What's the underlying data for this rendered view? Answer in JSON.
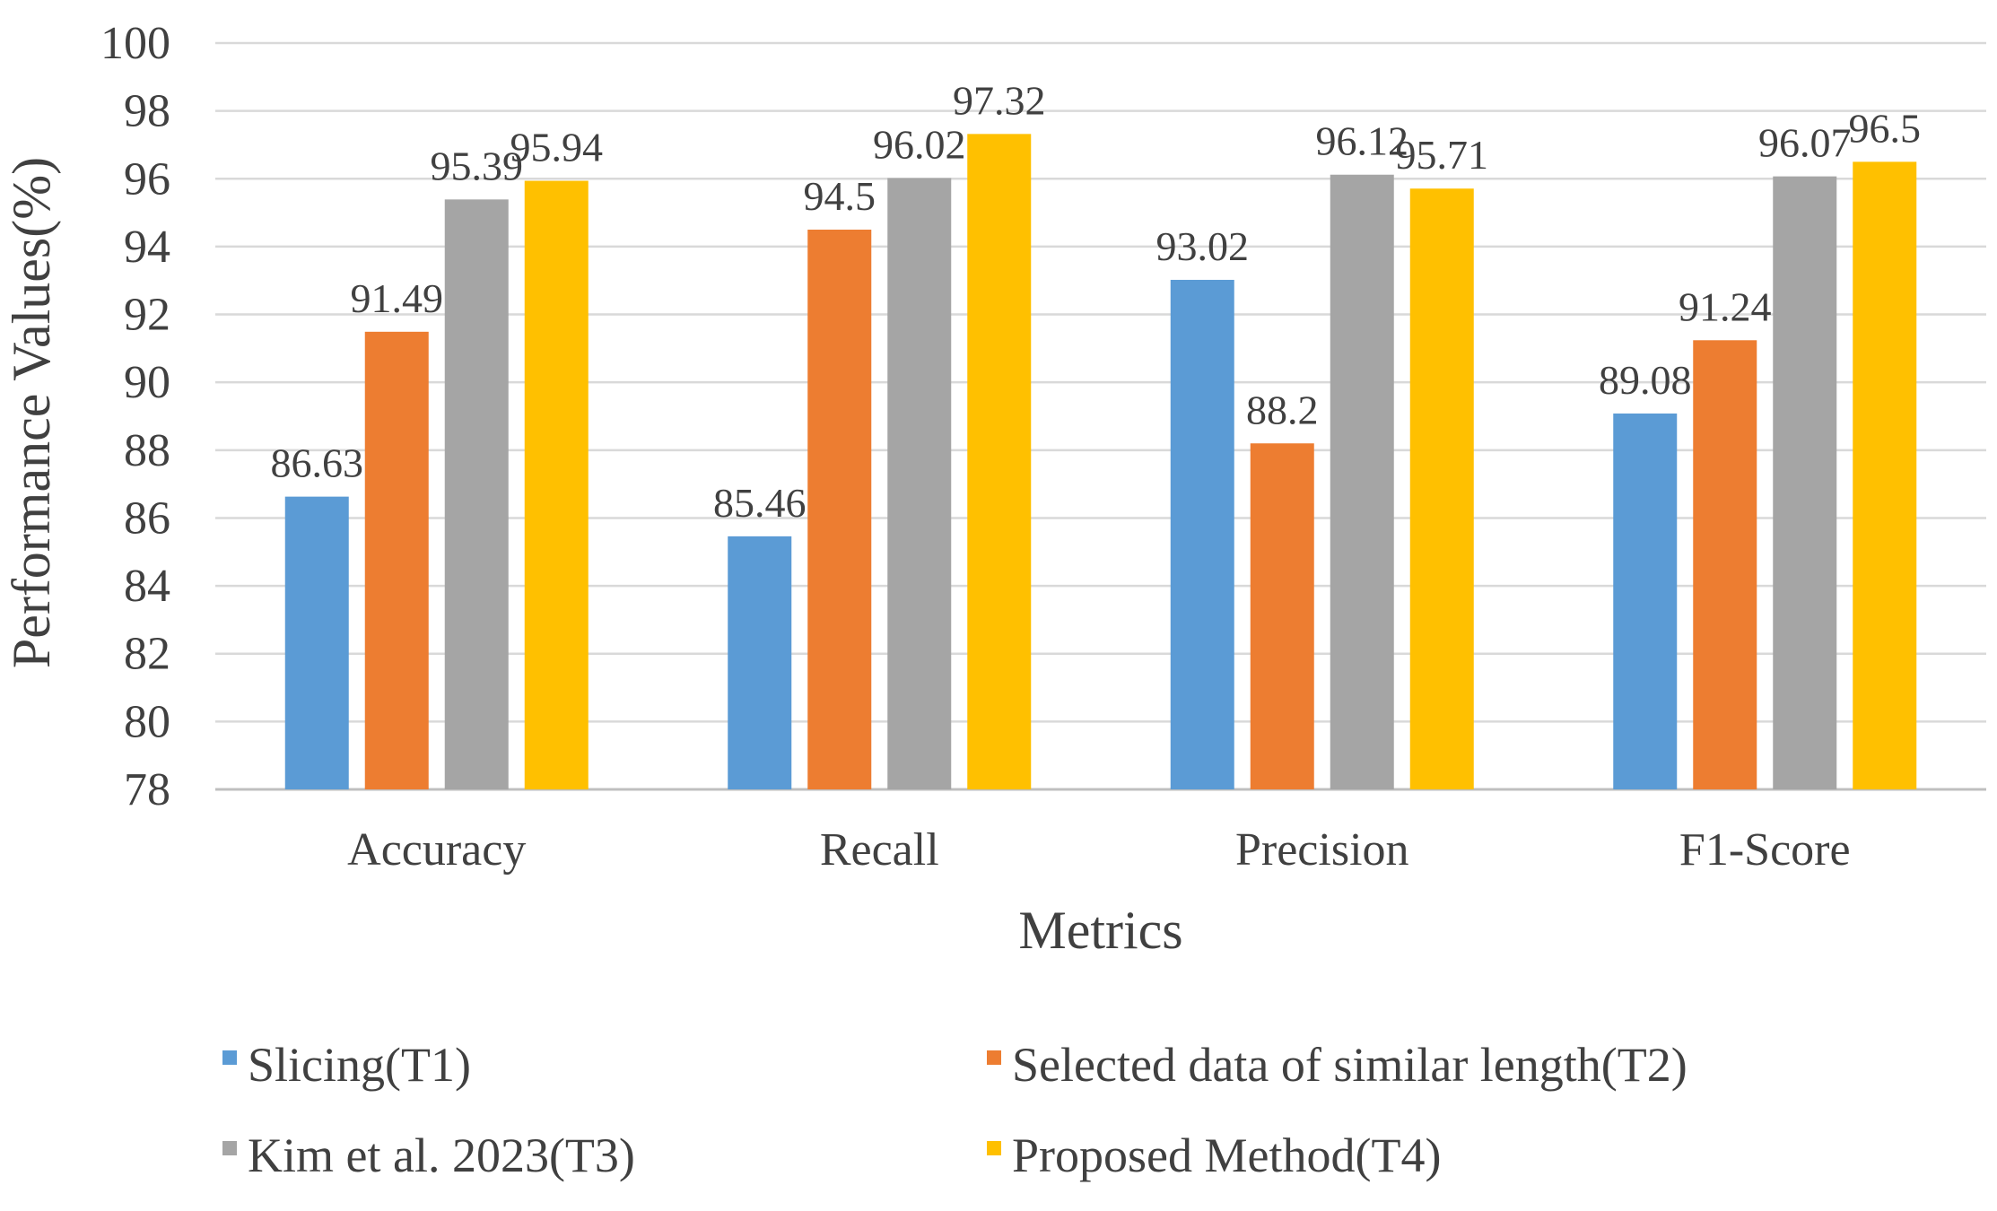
{
  "chart_data": {
    "type": "bar",
    "title": "",
    "xlabel": "Metrics",
    "ylabel": "Performance Values(%)",
    "ylim": [
      78,
      100
    ],
    "ytick_step": 2,
    "grid": true,
    "legend_position": "bottom",
    "categories": [
      "Accuracy",
      "Recall",
      "Precision",
      "F1-Score"
    ],
    "series": [
      {
        "name": "Slicing(T1)",
        "color": "#5B9BD5",
        "values": [
          86.63,
          85.46,
          93.02,
          89.08
        ],
        "labels": [
          "86.63",
          "85.46",
          "93.02",
          "89.08"
        ]
      },
      {
        "name": "Selected data of similar length(T2)",
        "color": "#ED7D31",
        "values": [
          91.49,
          94.5,
          88.2,
          91.24
        ],
        "labels": [
          "91.49",
          "94.5",
          "88.2",
          "91.24"
        ]
      },
      {
        "name": "Kim et al. 2023(T3)",
        "color": "#A5A5A5",
        "values": [
          95.39,
          96.02,
          96.12,
          96.07
        ],
        "labels": [
          "95.39",
          "96.02",
          "96.12",
          "96.07"
        ]
      },
      {
        "name": "Proposed Method(T4)",
        "color": "#FFC000",
        "values": [
          95.94,
          97.32,
          95.71,
          96.5
        ],
        "labels": [
          "95.94",
          "97.32",
          "95.71",
          "96.5"
        ]
      }
    ]
  }
}
